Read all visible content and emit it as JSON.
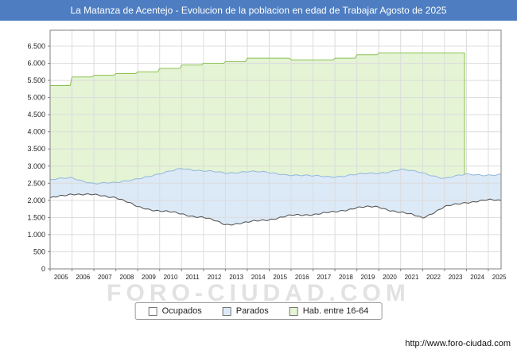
{
  "title": "La Matanza de Acentejo - Evolucion de la poblacion en edad de Trabajar Agosto de 2025",
  "watermark": "FORO-CIUDAD.COM",
  "footer_url": "http://www.foro-ciudad.com",
  "legend": {
    "items": [
      {
        "label": "Ocupados",
        "color": "#ffffff"
      },
      {
        "label": "Parados",
        "color": "#dce9f7"
      },
      {
        "label": "Hab. entre 16-64",
        "color": "#e4f4d5"
      }
    ]
  },
  "colors": {
    "titlebar": "#4e7ec1",
    "grid": "#dcdcdc",
    "plot_border": "#808080",
    "ocupados_line": "#4d4d4d",
    "parados_line": "#92b8dc",
    "parados_fill": "#dce9f7",
    "hab_line": "#8cc152",
    "hab_fill": "#e4f4d5",
    "ocupados_fill": "#ffffff"
  },
  "chart_data": {
    "type": "area",
    "title": "La Matanza de Acentejo - Evolucion de la poblacion en edad de Trabajar Agosto de 2025",
    "xlabel": "",
    "ylabel": "",
    "ylim": [
      0,
      6500
    ],
    "grid": true,
    "legend_position": "bottom",
    "x_resolution": "monthly (Jan 2005 - Aug 2025), yearly anchor values listed",
    "x_years": [
      "2005",
      "2006",
      "2007",
      "2008",
      "2009",
      "2010",
      "2011",
      "2012",
      "2013",
      "2014",
      "2015",
      "2016",
      "2017",
      "2018",
      "2019",
      "2020",
      "2021",
      "2022",
      "2023",
      "2024",
      "2025"
    ],
    "y_ticks": [
      "0",
      "500",
      "1.000",
      "1.500",
      "2.000",
      "2.500",
      "3.000",
      "3.500",
      "4.000",
      "4.500",
      "5.000",
      "5.500",
      "6.000",
      "6.500"
    ],
    "series": [
      {
        "name": "Ocupados",
        "stacked": false,
        "values": [
          2050,
          2200,
          2150,
          2100,
          1800,
          1700,
          1600,
          1500,
          1300,
          1350,
          1450,
          1550,
          1600,
          1650,
          1800,
          1800,
          1650,
          1500,
          1800,
          1950,
          2000
        ]
      },
      {
        "name": "Parados",
        "stacked": true,
        "stacked_on": "Ocupados",
        "values": [
          550,
          450,
          350,
          400,
          850,
          1050,
          1350,
          1350,
          1500,
          1500,
          1350,
          1200,
          1100,
          1050,
          950,
          1000,
          1250,
          1300,
          850,
          800,
          750
        ]
      },
      {
        "name": "Hab. entre 16-64",
        "stacked": false,
        "values": [
          5350,
          5600,
          5650,
          5700,
          5750,
          5850,
          5950,
          6000,
          6050,
          6150,
          6150,
          6100,
          6100,
          6150,
          6250,
          6300,
          6300,
          6300,
          6300,
          null,
          null
        ]
      }
    ]
  }
}
